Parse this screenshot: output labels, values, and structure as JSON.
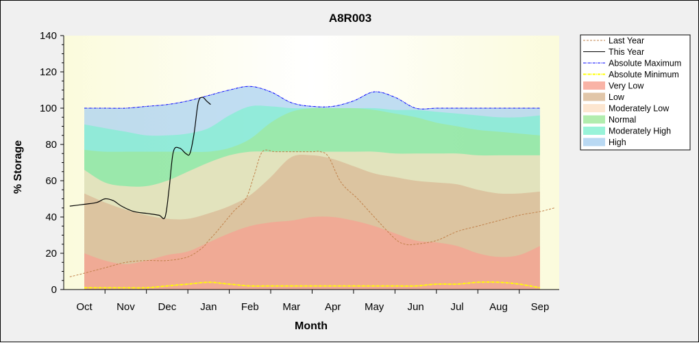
{
  "chart_data": {
    "type": "area",
    "title": "A8R003",
    "xlabel": "Month",
    "ylabel": "% Storage",
    "ylim": [
      0,
      140
    ],
    "yticks": [
      0,
      20,
      40,
      60,
      80,
      100,
      120,
      140
    ],
    "categories": [
      "Oct",
      "Nov",
      "Dec",
      "Jan",
      "Feb",
      "Mar",
      "Apr",
      "May",
      "Jun",
      "Jul",
      "Aug",
      "Sep"
    ],
    "legend_position": "right",
    "colors": {
      "very_low": "#f8a090",
      "low": "#d9b894",
      "moderately_low": "#fde0c4",
      "normal": "#9ee89a",
      "moderately_high": "#80f0d0",
      "high": "#a8d0f0",
      "last_year": "#c0804a",
      "this_year": "#000000",
      "absolute_maximum": "#0000ff",
      "absolute_minimum": "#ffff00"
    },
    "band_x": [
      0,
      0.5,
      1,
      1.5,
      2,
      2.5,
      3,
      3.5,
      4,
      4.5,
      5,
      5.5,
      6,
      6.5,
      7,
      7.5,
      8,
      8.5,
      9,
      9.5,
      10,
      10.5,
      11
    ],
    "bands": {
      "very_low": [
        20,
        16,
        14,
        16,
        19,
        21,
        26,
        31,
        35,
        37,
        38,
        40,
        40,
        38,
        35,
        31,
        27,
        26,
        24,
        20,
        18,
        19,
        24
      ],
      "low": [
        53,
        48,
        44,
        41,
        39,
        39,
        42,
        46,
        52,
        62,
        73,
        74,
        72,
        68,
        64,
        62,
        60,
        59,
        58,
        55,
        53,
        53,
        54
      ],
      "moderately_low": [
        66,
        59,
        57,
        57,
        60,
        65,
        70,
        74,
        76,
        76,
        76,
        76,
        76,
        76,
        76,
        75,
        75,
        75,
        75,
        74,
        74,
        74,
        74
      ],
      "normal": [
        77,
        76,
        76,
        76,
        76,
        76,
        76,
        78,
        83,
        92,
        98,
        100,
        100,
        100,
        99,
        97,
        95,
        92,
        90,
        88,
        87,
        86,
        85
      ],
      "moderately_high": [
        91,
        89,
        87,
        85,
        85,
        86,
        89,
        96,
        101,
        101,
        100,
        100,
        100,
        100,
        100,
        99,
        99,
        98,
        97,
        96,
        95,
        95,
        96
      ],
      "high": [
        100,
        100,
        100,
        101,
        102,
        104,
        107,
        110,
        112,
        109,
        103,
        101,
        101,
        104,
        109,
        106,
        100,
        100,
        100,
        100,
        100,
        100,
        100
      ]
    },
    "series": [
      {
        "name": "Last Year",
        "x": [
          -0.35,
          0,
          0.5,
          1,
          1.5,
          2,
          2.5,
          2.85,
          3,
          3.2,
          3.6,
          3.9,
          4.1,
          4.3,
          4.6,
          5,
          5.5,
          5.7,
          5.9,
          6.2,
          6.6,
          7,
          7.5,
          7.75,
          8,
          8.5,
          9,
          9.5,
          10,
          10.5,
          11,
          11.35
        ],
        "y": [
          7,
          9,
          12,
          15,
          16,
          16,
          18,
          23,
          27,
          32,
          43,
          50,
          63,
          76,
          76,
          76,
          76,
          76,
          73,
          59,
          50,
          40,
          28,
          25,
          25,
          27,
          32,
          35,
          38,
          41,
          43,
          45
        ]
      },
      {
        "name": "This Year",
        "x": [
          -0.35,
          0,
          0.3,
          0.5,
          0.7,
          0.9,
          1.2,
          1.5,
          1.8,
          1.95,
          2.05,
          2.15,
          2.3,
          2.45,
          2.55,
          2.65,
          2.75,
          2.85,
          2.95,
          3.05
        ],
        "y": [
          46,
          47,
          48,
          50,
          49,
          46,
          43,
          42,
          41,
          40,
          56,
          76,
          78,
          75,
          75,
          86,
          103,
          106,
          104,
          102
        ]
      },
      {
        "name": "Absolute Maximum",
        "x": [
          0,
          0.5,
          1,
          1.5,
          2,
          2.5,
          3,
          3.5,
          4,
          4.5,
          5,
          5.5,
          6,
          6.5,
          7,
          7.5,
          8,
          8.5,
          9,
          9.5,
          10,
          10.5,
          11
        ],
        "y": [
          100,
          100,
          100,
          101,
          102,
          104,
          107,
          110,
          112,
          109,
          103,
          101,
          101,
          104,
          109,
          106,
          100,
          100,
          100,
          100,
          100,
          100,
          100
        ]
      },
      {
        "name": "Absolute Minimum",
        "x": [
          0,
          0.5,
          1,
          1.5,
          2,
          2.5,
          3,
          3.5,
          4,
          4.5,
          5,
          5.5,
          6,
          6.5,
          7,
          7.5,
          8,
          8.5,
          9,
          9.5,
          10,
          10.5,
          11
        ],
        "y": [
          1,
          1,
          1,
          1,
          2,
          3,
          4,
          3,
          2,
          2,
          2,
          2,
          2,
          2,
          2,
          2,
          2,
          3,
          3,
          4,
          4,
          3,
          1
        ]
      }
    ],
    "legend": [
      {
        "label": "Last Year",
        "kind": "line",
        "key": "last_year",
        "dash": "3,2"
      },
      {
        "label": "This Year",
        "kind": "line",
        "key": "this_year",
        "dash": ""
      },
      {
        "label": "Absolute Maximum",
        "kind": "line",
        "key": "absolute_maximum",
        "dash": "4,1,1,1"
      },
      {
        "label": "Absolute Minimum",
        "kind": "line",
        "key": "absolute_minimum",
        "dash": "4,1,1,1"
      },
      {
        "label": "Very Low",
        "kind": "fill",
        "key": "very_low"
      },
      {
        "label": "Low",
        "kind": "fill",
        "key": "low"
      },
      {
        "label": "Moderately Low",
        "kind": "fill",
        "key": "moderately_low"
      },
      {
        "label": "Normal",
        "kind": "fill",
        "key": "normal"
      },
      {
        "label": "Moderately High",
        "kind": "fill",
        "key": "moderately_high"
      },
      {
        "label": "High",
        "kind": "fill",
        "key": "high"
      }
    ]
  }
}
